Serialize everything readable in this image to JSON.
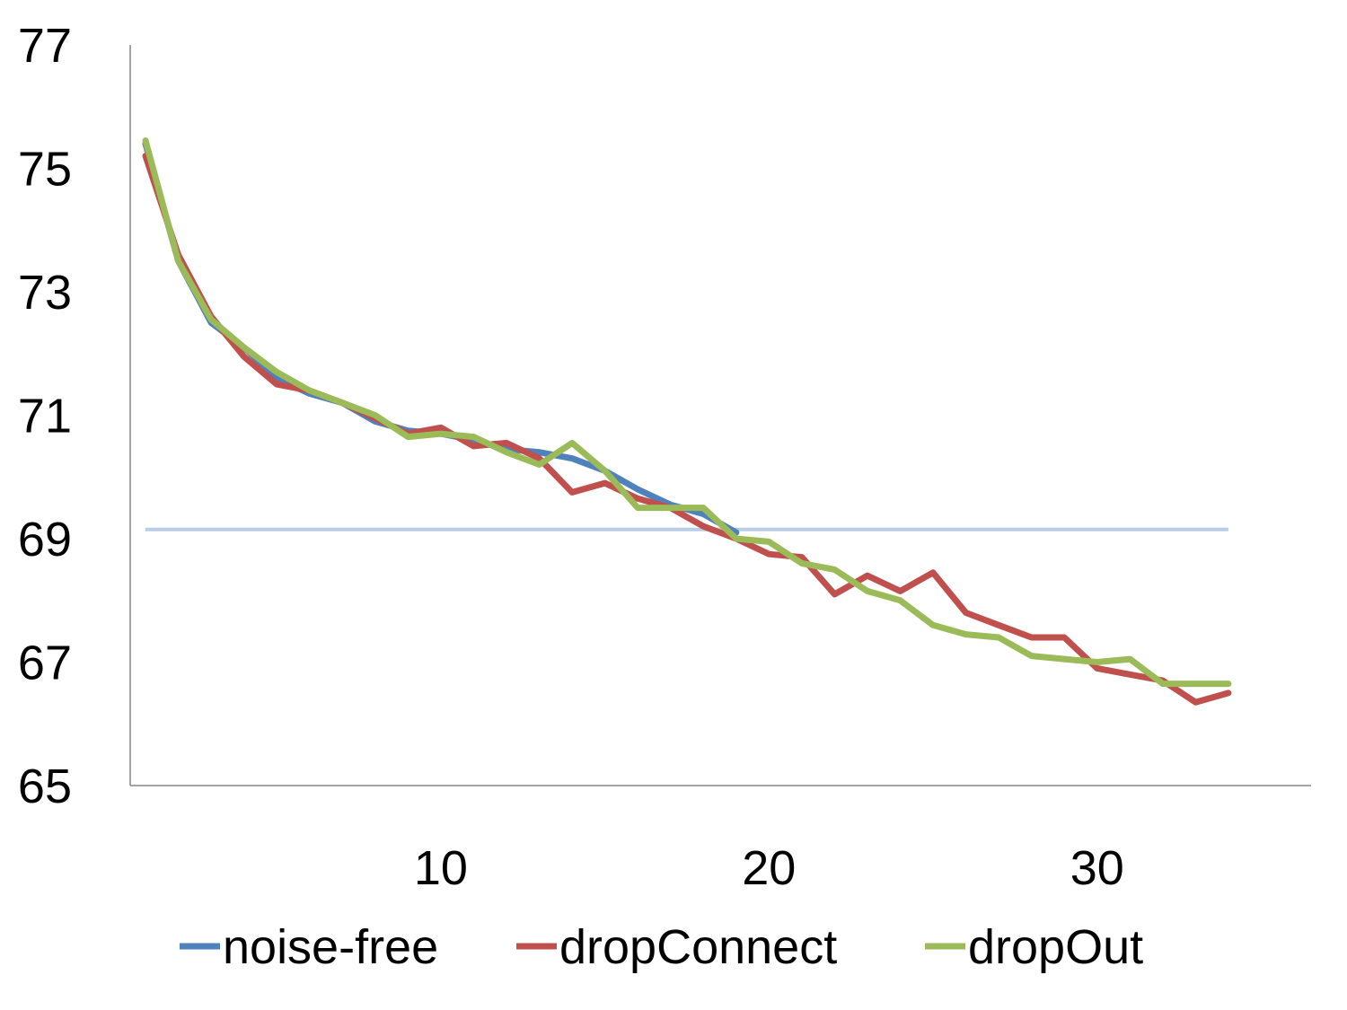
{
  "chart_data": {
    "type": "line",
    "title": "",
    "xlabel": "",
    "ylabel": "",
    "xlim": [
      0,
      36
    ],
    "ylim": [
      65,
      77
    ],
    "x_ticks": [
      10,
      20,
      30
    ],
    "y_ticks": [
      65,
      67,
      69,
      71,
      73,
      75,
      77
    ],
    "x_tick_labels": [
      "10",
      "20",
      "30"
    ],
    "y_tick_labels": [
      "65",
      "67",
      "69",
      "71",
      "73",
      "75",
      "77"
    ],
    "grid": false,
    "legend_position": "bottom",
    "reference_line": {
      "y": 69.15,
      "color": "#b9cde5"
    },
    "series": [
      {
        "name": "noise-free",
        "color": "#4f81bd",
        "x": [
          1,
          2,
          3,
          4,
          5,
          6,
          7,
          8,
          9,
          10,
          11,
          12,
          13,
          14,
          15,
          16,
          17,
          18,
          19
        ],
        "y": [
          75.4,
          73.5,
          72.5,
          72.1,
          71.6,
          71.35,
          71.2,
          70.9,
          70.75,
          70.7,
          70.6,
          70.45,
          70.4,
          70.3,
          70.1,
          69.8,
          69.55,
          69.4,
          69.1
        ]
      },
      {
        "name": "dropConnect",
        "color": "#c0504d",
        "x": [
          1,
          2,
          3,
          4,
          5,
          6,
          7,
          8,
          9,
          10,
          11,
          12,
          13,
          14,
          15,
          16,
          17,
          18,
          19,
          20,
          21,
          22,
          23,
          24,
          25,
          26,
          27,
          28,
          29,
          30,
          31,
          32,
          33,
          34
        ],
        "y": [
          75.2,
          73.6,
          72.6,
          71.95,
          71.5,
          71.4,
          71.2,
          70.95,
          70.7,
          70.8,
          70.5,
          70.55,
          70.3,
          69.75,
          69.9,
          69.65,
          69.5,
          69.2,
          69.0,
          68.75,
          68.7,
          68.1,
          68.4,
          68.15,
          68.45,
          67.8,
          67.6,
          67.4,
          67.4,
          66.9,
          66.8,
          66.7,
          66.35,
          66.5
        ]
      },
      {
        "name": "dropOut",
        "color": "#9bbb59",
        "x": [
          1,
          2,
          3,
          4,
          5,
          6,
          7,
          8,
          9,
          10,
          11,
          12,
          13,
          14,
          15,
          16,
          17,
          18,
          19,
          20,
          21,
          22,
          23,
          24,
          25,
          26,
          27,
          28,
          29,
          30,
          31,
          32,
          33,
          34
        ],
        "y": [
          75.45,
          73.5,
          72.55,
          72.1,
          71.7,
          71.4,
          71.2,
          71.0,
          70.65,
          70.7,
          70.65,
          70.4,
          70.2,
          70.55,
          70.1,
          69.5,
          69.5,
          69.5,
          69.0,
          68.95,
          68.6,
          68.5,
          68.15,
          68.0,
          67.6,
          67.45,
          67.4,
          67.1,
          67.05,
          67.0,
          67.05,
          66.65,
          66.65,
          66.65
        ]
      }
    ]
  }
}
